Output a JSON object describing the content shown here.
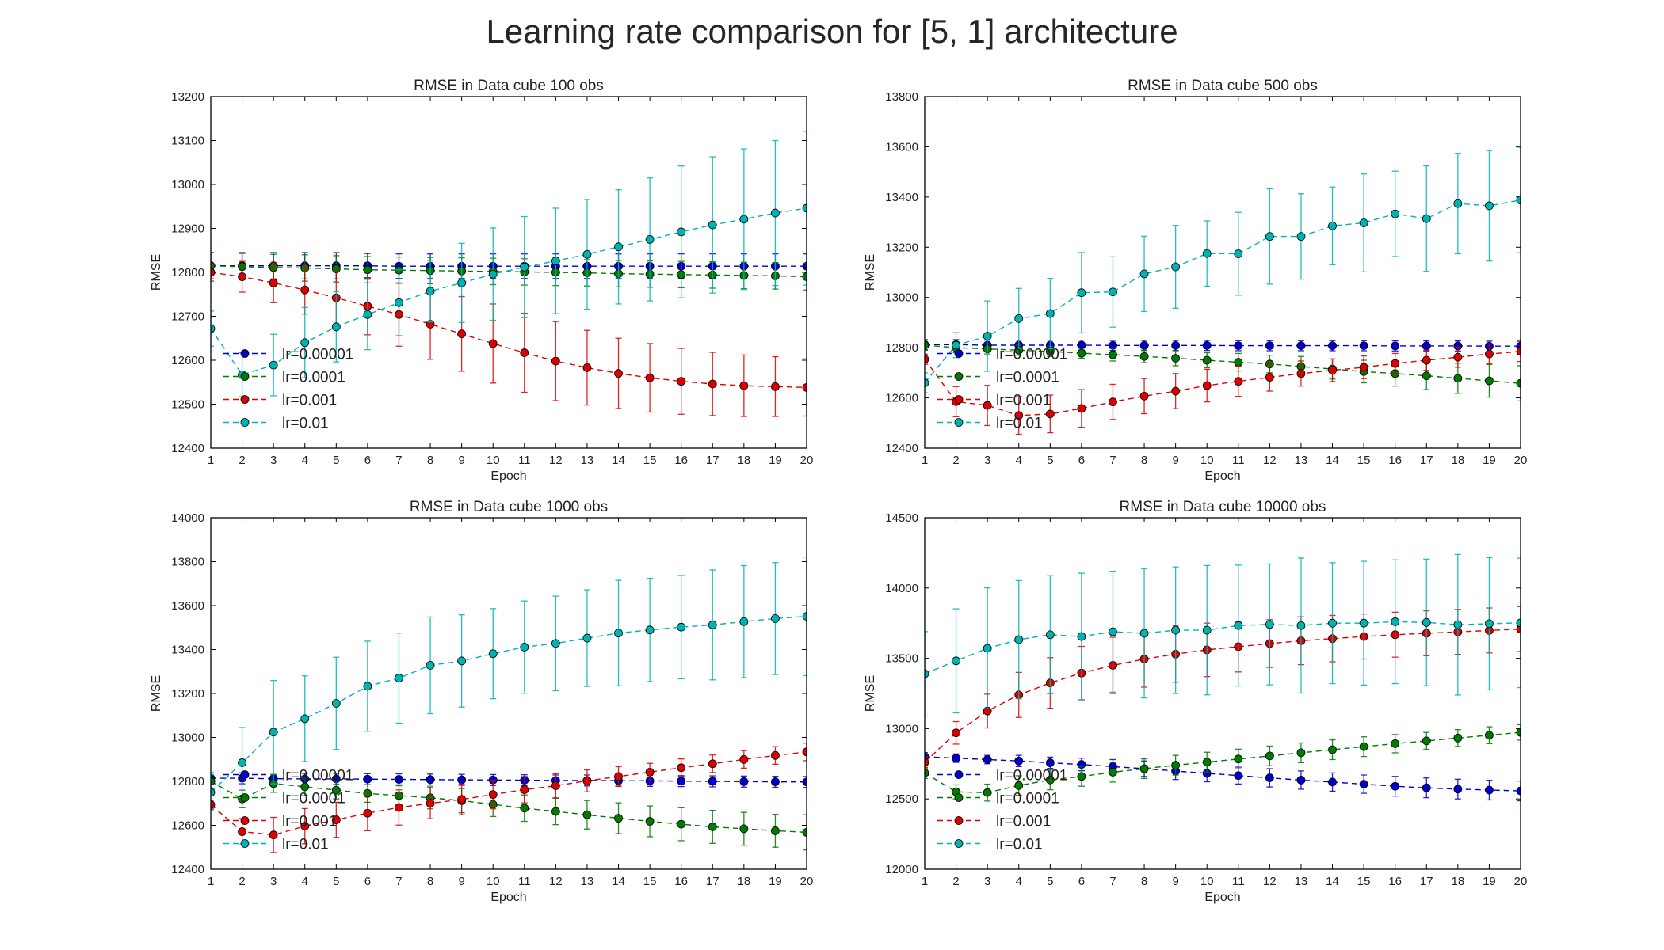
{
  "suptitle": "Learning rate comparison for [5, 1] architecture",
  "colors": {
    "lr=0.00001": "#0000cc",
    "lr=0.0001": "#007a00",
    "lr=0.001": "#dd0000",
    "lr=0.01": "#00b3b3"
  },
  "chart_data": [
    {
      "type": "line",
      "title": "RMSE in Data cube 100 obs",
      "xlabel": "Epoch",
      "ylabel": "RMSE",
      "x": [
        1,
        2,
        3,
        4,
        5,
        6,
        7,
        8,
        9,
        10,
        11,
        12,
        13,
        14,
        15,
        16,
        17,
        18,
        19,
        20
      ],
      "xlim": [
        1,
        20
      ],
      "ylim": [
        12400,
        13200
      ],
      "yticks": [
        12400,
        12500,
        12600,
        12700,
        12800,
        12900,
        13000,
        13100,
        13200
      ],
      "legend": "lower-left",
      "series": [
        {
          "name": "lr=0.00001",
          "color": "#0000cc",
          "values": [
            12815,
            12815,
            12815,
            12815,
            12815,
            12815,
            12814,
            12814,
            12814,
            12814,
            12814,
            12814,
            12814,
            12814,
            12814,
            12814,
            12814,
            12814,
            12814,
            12814
          ],
          "errors": [
            30,
            30,
            30,
            30,
            30,
            28,
            28,
            28,
            28,
            28,
            28,
            28,
            28,
            28,
            28,
            28,
            28,
            28,
            28,
            28
          ]
        },
        {
          "name": "lr=0.0001",
          "color": "#007a00",
          "values": [
            12815,
            12813,
            12811,
            12810,
            12808,
            12806,
            12805,
            12804,
            12803,
            12802,
            12801,
            12800,
            12799,
            12797,
            12796,
            12795,
            12794,
            12793,
            12792,
            12790
          ],
          "errors": [
            30,
            30,
            30,
            30,
            30,
            30,
            30,
            30,
            30,
            30,
            30,
            30,
            30,
            30,
            30,
            30,
            30,
            30,
            30,
            30
          ]
        },
        {
          "name": "lr=0.001",
          "color": "#dd0000",
          "values": [
            12800,
            12790,
            12776,
            12760,
            12742,
            12723,
            12704,
            12682,
            12660,
            12638,
            12617,
            12598,
            12583,
            12570,
            12560,
            12552,
            12546,
            12542,
            12540,
            12538
          ],
          "errors": [
            20,
            35,
            45,
            55,
            60,
            65,
            72,
            80,
            85,
            90,
            90,
            90,
            85,
            80,
            78,
            75,
            72,
            70,
            68,
            65
          ]
        },
        {
          "name": "lr=0.01",
          "color": "#00b3b3",
          "values": [
            12672,
            12567,
            12589,
            12640,
            12676,
            12704,
            12731,
            12757,
            12776,
            12796,
            12812,
            12826,
            12841,
            12858,
            12875,
            12892,
            12908,
            12921,
            12935,
            12946
          ],
          "errors": [
            40,
            50,
            70,
            80,
            80,
            80,
            75,
            70,
            90,
            105,
            115,
            120,
            125,
            130,
            140,
            150,
            155,
            160,
            165,
            175
          ]
        }
      ]
    },
    {
      "type": "line",
      "title": "RMSE in Data cube 500 obs",
      "xlabel": "Epoch",
      "ylabel": "RMSE",
      "x": [
        1,
        2,
        3,
        4,
        5,
        6,
        7,
        8,
        9,
        10,
        11,
        12,
        13,
        14,
        15,
        16,
        17,
        18,
        19,
        20
      ],
      "xlim": [
        1,
        20
      ],
      "ylim": [
        12400,
        13800
      ],
      "yticks": [
        12400,
        12600,
        12800,
        13000,
        13200,
        13400,
        13600,
        13800
      ],
      "legend": "lower-left",
      "series": [
        {
          "name": "lr=0.00001",
          "color": "#0000cc",
          "values": [
            12812,
            12812,
            12810,
            12810,
            12810,
            12810,
            12809,
            12809,
            12809,
            12809,
            12808,
            12808,
            12808,
            12808,
            12808,
            12807,
            12807,
            12807,
            12806,
            12806
          ],
          "errors": [
            20,
            20,
            20,
            20,
            20,
            20,
            20,
            20,
            20,
            20,
            20,
            20,
            20,
            20,
            20,
            20,
            20,
            20,
            20,
            20
          ]
        },
        {
          "name": "lr=0.0001",
          "color": "#007a00",
          "values": [
            12810,
            12800,
            12795,
            12790,
            12785,
            12778,
            12772,
            12765,
            12758,
            12750,
            12742,
            12735,
            12725,
            12715,
            12705,
            12697,
            12688,
            12678,
            12668,
            12658
          ],
          "errors": [
            20,
            20,
            20,
            20,
            20,
            20,
            25,
            25,
            30,
            30,
            35,
            35,
            40,
            40,
            45,
            50,
            55,
            60,
            65,
            70
          ]
        },
        {
          "name": "lr=0.001",
          "color": "#dd0000",
          "values": [
            12754,
            12585,
            12570,
            12530,
            12536,
            12558,
            12584,
            12607,
            12627,
            12649,
            12666,
            12682,
            12697,
            12710,
            12722,
            12737,
            12750,
            12762,
            12775,
            12785
          ],
          "errors": [
            20,
            60,
            80,
            75,
            75,
            75,
            70,
            70,
            70,
            65,
            60,
            55,
            50,
            45,
            45,
            40,
            40,
            40,
            40,
            40
          ]
        },
        {
          "name": "lr=0.01",
          "color": "#00b3b3",
          "values": [
            12660,
            12810,
            12846,
            12916,
            12936,
            13019,
            13022,
            13094,
            13122,
            13175,
            13174,
            13243,
            13243,
            13285,
            13297,
            13333,
            13314,
            13374,
            13365,
            13388
          ],
          "errors": [
            40,
            50,
            140,
            120,
            140,
            160,
            140,
            150,
            165,
            130,
            165,
            190,
            170,
            155,
            195,
            170,
            210,
            200,
            220,
            210
          ]
        }
      ]
    },
    {
      "type": "line",
      "title": "RMSE in Data cube 1000 obs",
      "xlabel": "Epoch",
      "ylabel": "RMSE",
      "x": [
        1,
        2,
        3,
        4,
        5,
        6,
        7,
        8,
        9,
        10,
        11,
        12,
        13,
        14,
        15,
        16,
        17,
        18,
        19,
        20
      ],
      "xlim": [
        1,
        20
      ],
      "ylim": [
        12400,
        14000
      ],
      "yticks": [
        12400,
        12600,
        12800,
        13000,
        13200,
        13400,
        13600,
        13800,
        14000
      ],
      "legend": "lower-left",
      "series": [
        {
          "name": "lr=0.00001",
          "color": "#0000cc",
          "values": [
            12814,
            12814,
            12812,
            12811,
            12811,
            12810,
            12809,
            12808,
            12807,
            12806,
            12805,
            12804,
            12804,
            12803,
            12802,
            12801,
            12800,
            12799,
            12798,
            12797
          ],
          "errors": [
            25,
            25,
            25,
            25,
            25,
            25,
            25,
            25,
            25,
            25,
            25,
            25,
            25,
            25,
            25,
            25,
            25,
            25,
            25,
            25
          ]
        },
        {
          "name": "lr=0.0001",
          "color": "#007a00",
          "values": [
            12800,
            12720,
            12790,
            12775,
            12760,
            12745,
            12735,
            12725,
            12712,
            12695,
            12678,
            12663,
            12648,
            12632,
            12618,
            12605,
            12593,
            12584,
            12575,
            12568
          ],
          "errors": [
            30,
            40,
            40,
            40,
            40,
            40,
            45,
            50,
            55,
            55,
            60,
            60,
            65,
            70,
            70,
            75,
            75,
            75,
            75,
            80
          ]
        },
        {
          "name": "lr=0.001",
          "color": "#dd0000",
          "values": [
            12694,
            12571,
            12556,
            12596,
            12625,
            12655,
            12681,
            12700,
            12718,
            12740,
            12762,
            12780,
            12802,
            12822,
            12842,
            12862,
            12880,
            12900,
            12918,
            12934
          ],
          "errors": [
            20,
            60,
            80,
            80,
            80,
            80,
            80,
            70,
            70,
            65,
            60,
            55,
            50,
            45,
            40,
            40,
            40,
            40,
            40,
            40
          ]
        },
        {
          "name": "lr=0.01",
          "color": "#00b3b3",
          "values": [
            12750,
            12885,
            13024,
            13085,
            13155,
            13233,
            13270,
            13328,
            13348,
            13381,
            13411,
            13428,
            13452,
            13475,
            13489,
            13502,
            13512,
            13527,
            13541,
            13551
          ],
          "errors": [
            80,
            160,
            235,
            195,
            210,
            205,
            205,
            220,
            210,
            205,
            210,
            215,
            220,
            240,
            235,
            235,
            250,
            255,
            255,
            270
          ]
        }
      ]
    },
    {
      "type": "line",
      "title": "RMSE in Data cube 10000 obs",
      "xlabel": "Epoch",
      "ylabel": "RMSE",
      "x": [
        1,
        2,
        3,
        4,
        5,
        6,
        7,
        8,
        9,
        10,
        11,
        12,
        13,
        14,
        15,
        16,
        17,
        18,
        19,
        20
      ],
      "xlim": [
        1,
        20
      ],
      "ylim": [
        12000,
        14500
      ],
      "yticks": [
        12000,
        12500,
        13000,
        13500,
        14000,
        14500
      ],
      "legend": "lower-left",
      "series": [
        {
          "name": "lr=0.00001",
          "color": "#0000cc",
          "values": [
            12800,
            12790,
            12780,
            12770,
            12757,
            12745,
            12730,
            12715,
            12698,
            12682,
            12666,
            12650,
            12634,
            12620,
            12605,
            12590,
            12579,
            12570,
            12563,
            12557
          ],
          "errors": [
            30,
            30,
            30,
            40,
            40,
            45,
            50,
            55,
            60,
            60,
            60,
            65,
            65,
            65,
            65,
            70,
            70,
            70,
            70,
            70
          ]
        },
        {
          "name": "lr=0.0001",
          "color": "#007a00",
          "values": [
            12685,
            12550,
            12545,
            12595,
            12635,
            12660,
            12690,
            12715,
            12740,
            12762,
            12784,
            12806,
            12828,
            12850,
            12872,
            12893,
            12913,
            12933,
            12953,
            12973
          ],
          "errors": [
            40,
            50,
            60,
            70,
            70,
            70,
            70,
            70,
            70,
            70,
            70,
            70,
            70,
            70,
            70,
            65,
            60,
            60,
            60,
            55
          ]
        },
        {
          "name": "lr=0.001",
          "color": "#dd0000",
          "values": [
            12760,
            12970,
            13125,
            13240,
            13325,
            13395,
            13450,
            13495,
            13530,
            13560,
            13583,
            13605,
            13625,
            13640,
            13655,
            13668,
            13678,
            13688,
            13698,
            13708
          ],
          "errors": [
            40,
            80,
            120,
            160,
            180,
            190,
            200,
            200,
            200,
            190,
            180,
            170,
            170,
            165,
            160,
            160,
            160,
            160,
            160,
            160
          ]
        },
        {
          "name": "lr=0.01",
          "color": "#00b3b3",
          "values": [
            13390,
            13482,
            13571,
            13633,
            13668,
            13655,
            13689,
            13678,
            13700,
            13700,
            13733,
            13741,
            13733,
            13750,
            13750,
            13760,
            13755,
            13739,
            13746,
            13752
          ],
          "errors": [
            300,
            370,
            430,
            420,
            420,
            450,
            430,
            460,
            450,
            460,
            430,
            430,
            480,
            430,
            440,
            440,
            450,
            500,
            470,
            460
          ]
        }
      ]
    }
  ]
}
